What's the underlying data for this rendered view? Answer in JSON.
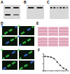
{
  "panels": [
    {
      "label": "A"
    },
    {
      "label": "B"
    },
    {
      "label": "C"
    },
    {
      "label": "D"
    },
    {
      "label": "E"
    },
    {
      "label": "F"
    }
  ],
  "chart_data": {
    "type": "line",
    "x": [
      0,
      1,
      2,
      3,
      4,
      5,
      6,
      7
    ],
    "values": [
      100,
      98,
      94,
      84,
      60,
      36,
      16,
      8
    ],
    "xlim": [
      -0.5,
      7.5
    ],
    "xticks": [
      0,
      2,
      4,
      6
    ],
    "ylim": [
      0,
      120
    ],
    "yticks": [
      0,
      50,
      100
    ],
    "color": "#222222",
    "marker": "circle",
    "tick_labels": false
  }
}
